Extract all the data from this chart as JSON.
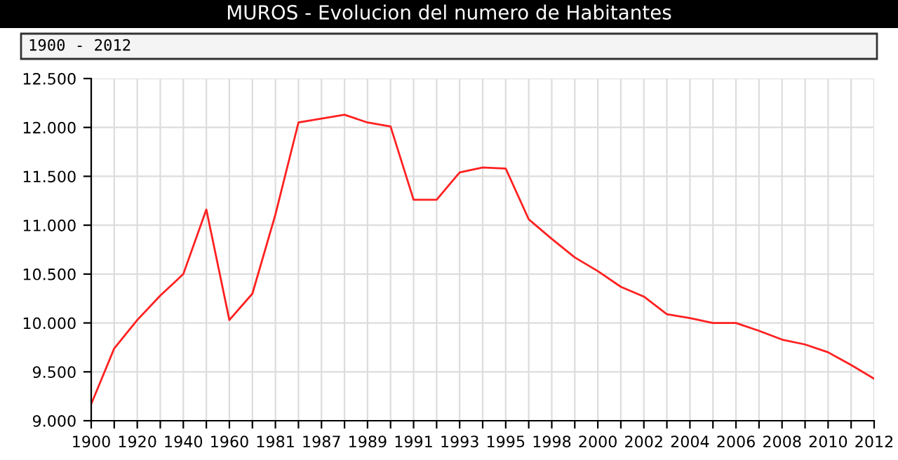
{
  "chart_data": {
    "type": "line",
    "title": "MUROS - Evolucion del numero de Habitantes",
    "annotations": [
      "1900 - 2012"
    ],
    "categories": [
      "1900",
      null,
      "1920",
      null,
      "1940",
      null,
      "1960",
      null,
      "1981",
      null,
      "1987",
      null,
      "1989",
      null,
      "1991",
      null,
      "1993",
      null,
      "1995",
      null,
      "1998",
      null,
      "2000",
      null,
      "2002",
      null,
      "2004",
      null,
      "2006",
      null,
      "2008",
      null,
      "2010",
      null,
      "2012"
    ],
    "series": [
      {
        "color": "#ff2020",
        "values": [
          9170,
          9740,
          10030,
          10280,
          10500,
          11160,
          10030,
          10300,
          11110,
          12050,
          12090,
          12130,
          12050,
          12010,
          11260,
          11260,
          11540,
          11590,
          11580,
          11060,
          10860,
          10670,
          10530,
          10370,
          10270,
          10090,
          10050,
          10000,
          10000,
          9920,
          9830,
          9780,
          9700,
          9570,
          9430
        ]
      }
    ],
    "ylim": [
      9000,
      12500
    ],
    "yticks": [
      {
        "value": 9000,
        "label": "9.000"
      },
      {
        "value": 9500,
        "label": "9.500"
      },
      {
        "value": 10000,
        "label": "10.000"
      },
      {
        "value": 10500,
        "label": "10.500"
      },
      {
        "value": 11000,
        "label": "11.000"
      },
      {
        "value": 11500,
        "label": "11.500"
      },
      {
        "value": 12000,
        "label": "12.000"
      },
      {
        "value": 12500,
        "label": "12.500"
      }
    ],
    "grid": true,
    "marker": "none",
    "line_style": "solid"
  }
}
